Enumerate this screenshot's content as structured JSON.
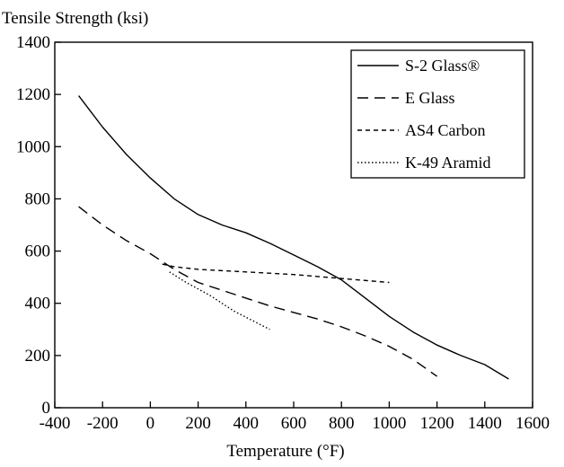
{
  "chart_data": {
    "type": "line",
    "title": "",
    "ylabel": "Tensile Strength (ksi)",
    "xlabel": "Temperature (°F)",
    "xlim": [
      -400,
      1600
    ],
    "ylim": [
      0,
      1400
    ],
    "xticks": [
      -400,
      -200,
      0,
      200,
      400,
      600,
      800,
      1000,
      1200,
      1400,
      1600
    ],
    "yticks": [
      0,
      200,
      400,
      600,
      800,
      1000,
      1200,
      1400
    ],
    "grid": false,
    "legend_position": "top-right",
    "series": [
      {
        "name": "S-2 Glass®",
        "style": "solid",
        "points": [
          [
            -300,
            1195
          ],
          [
            -200,
            1075
          ],
          [
            -100,
            970
          ],
          [
            0,
            880
          ],
          [
            100,
            800
          ],
          [
            200,
            740
          ],
          [
            300,
            700
          ],
          [
            400,
            670
          ],
          [
            500,
            630
          ],
          [
            600,
            585
          ],
          [
            700,
            540
          ],
          [
            800,
            490
          ],
          [
            900,
            420
          ],
          [
            1000,
            350
          ],
          [
            1100,
            290
          ],
          [
            1200,
            240
          ],
          [
            1300,
            200
          ],
          [
            1400,
            165
          ],
          [
            1500,
            110
          ]
        ]
      },
      {
        "name": "E Glass",
        "style": "dashed",
        "points": [
          [
            -300,
            770
          ],
          [
            -200,
            700
          ],
          [
            -100,
            640
          ],
          [
            0,
            590
          ],
          [
            100,
            530
          ],
          [
            200,
            480
          ],
          [
            300,
            450
          ],
          [
            400,
            420
          ],
          [
            500,
            390
          ],
          [
            600,
            365
          ],
          [
            700,
            340
          ],
          [
            800,
            310
          ],
          [
            900,
            275
          ],
          [
            1000,
            235
          ],
          [
            1100,
            185
          ],
          [
            1200,
            120
          ]
        ]
      },
      {
        "name": "AS4 Carbon",
        "style": "short-dash",
        "points": [
          [
            50,
            550
          ],
          [
            100,
            540
          ],
          [
            200,
            530
          ],
          [
            400,
            520
          ],
          [
            600,
            510
          ],
          [
            800,
            495
          ],
          [
            1000,
            480
          ]
        ]
      },
      {
        "name": "K-49 Aramid",
        "style": "dotted",
        "points": [
          [
            80,
            520
          ],
          [
            150,
            480
          ],
          [
            250,
            430
          ],
          [
            350,
            370
          ],
          [
            500,
            300
          ]
        ]
      }
    ]
  }
}
